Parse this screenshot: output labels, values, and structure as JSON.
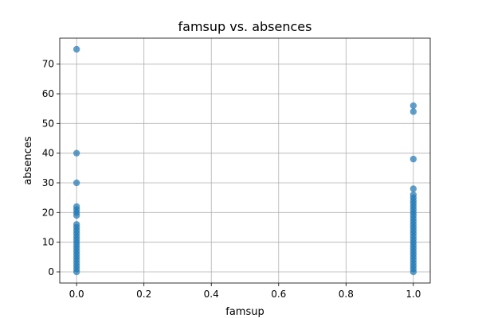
{
  "chart_data": {
    "type": "scatter",
    "title": "famsup vs. absences",
    "xlabel": "famsup",
    "ylabel": "absences",
    "xlim": [
      -0.05,
      1.05
    ],
    "ylim": [
      -3.75,
      78.75
    ],
    "xticks": [
      0.0,
      0.2,
      0.4,
      0.6,
      0.8,
      1.0
    ],
    "xtick_labels": [
      "0.0",
      "0.2",
      "0.4",
      "0.6",
      "0.8",
      "1.0"
    ],
    "yticks": [
      0,
      10,
      20,
      30,
      40,
      50,
      60,
      70
    ],
    "ytick_labels": [
      "0",
      "10",
      "20",
      "30",
      "40",
      "50",
      "60",
      "70"
    ],
    "grid": true,
    "marker_color": "#1f77b4",
    "points": [
      {
        "x": 0,
        "y": 0
      },
      {
        "x": 0,
        "y": 1
      },
      {
        "x": 0,
        "y": 2
      },
      {
        "x": 0,
        "y": 3
      },
      {
        "x": 0,
        "y": 4
      },
      {
        "x": 0,
        "y": 5
      },
      {
        "x": 0,
        "y": 6
      },
      {
        "x": 0,
        "y": 7
      },
      {
        "x": 0,
        "y": 8
      },
      {
        "x": 0,
        "y": 9
      },
      {
        "x": 0,
        "y": 10
      },
      {
        "x": 0,
        "y": 11
      },
      {
        "x": 0,
        "y": 12
      },
      {
        "x": 0,
        "y": 13
      },
      {
        "x": 0,
        "y": 14
      },
      {
        "x": 0,
        "y": 15
      },
      {
        "x": 0,
        "y": 16
      },
      {
        "x": 0,
        "y": 19
      },
      {
        "x": 0,
        "y": 20
      },
      {
        "x": 0,
        "y": 21
      },
      {
        "x": 0,
        "y": 22
      },
      {
        "x": 0,
        "y": 30
      },
      {
        "x": 0,
        "y": 40
      },
      {
        "x": 0,
        "y": 75
      },
      {
        "x": 1,
        "y": 0
      },
      {
        "x": 1,
        "y": 1
      },
      {
        "x": 1,
        "y": 2
      },
      {
        "x": 1,
        "y": 3
      },
      {
        "x": 1,
        "y": 4
      },
      {
        "x": 1,
        "y": 5
      },
      {
        "x": 1,
        "y": 6
      },
      {
        "x": 1,
        "y": 7
      },
      {
        "x": 1,
        "y": 8
      },
      {
        "x": 1,
        "y": 9
      },
      {
        "x": 1,
        "y": 10
      },
      {
        "x": 1,
        "y": 11
      },
      {
        "x": 1,
        "y": 12
      },
      {
        "x": 1,
        "y": 13
      },
      {
        "x": 1,
        "y": 14
      },
      {
        "x": 1,
        "y": 15
      },
      {
        "x": 1,
        "y": 16
      },
      {
        "x": 1,
        "y": 17
      },
      {
        "x": 1,
        "y": 18
      },
      {
        "x": 1,
        "y": 19
      },
      {
        "x": 1,
        "y": 20
      },
      {
        "x": 1,
        "y": 21
      },
      {
        "x": 1,
        "y": 22
      },
      {
        "x": 1,
        "y": 23
      },
      {
        "x": 1,
        "y": 24
      },
      {
        "x": 1,
        "y": 25
      },
      {
        "x": 1,
        "y": 26
      },
      {
        "x": 1,
        "y": 28
      },
      {
        "x": 1,
        "y": 38
      },
      {
        "x": 1,
        "y": 54
      },
      {
        "x": 1,
        "y": 56
      }
    ]
  }
}
